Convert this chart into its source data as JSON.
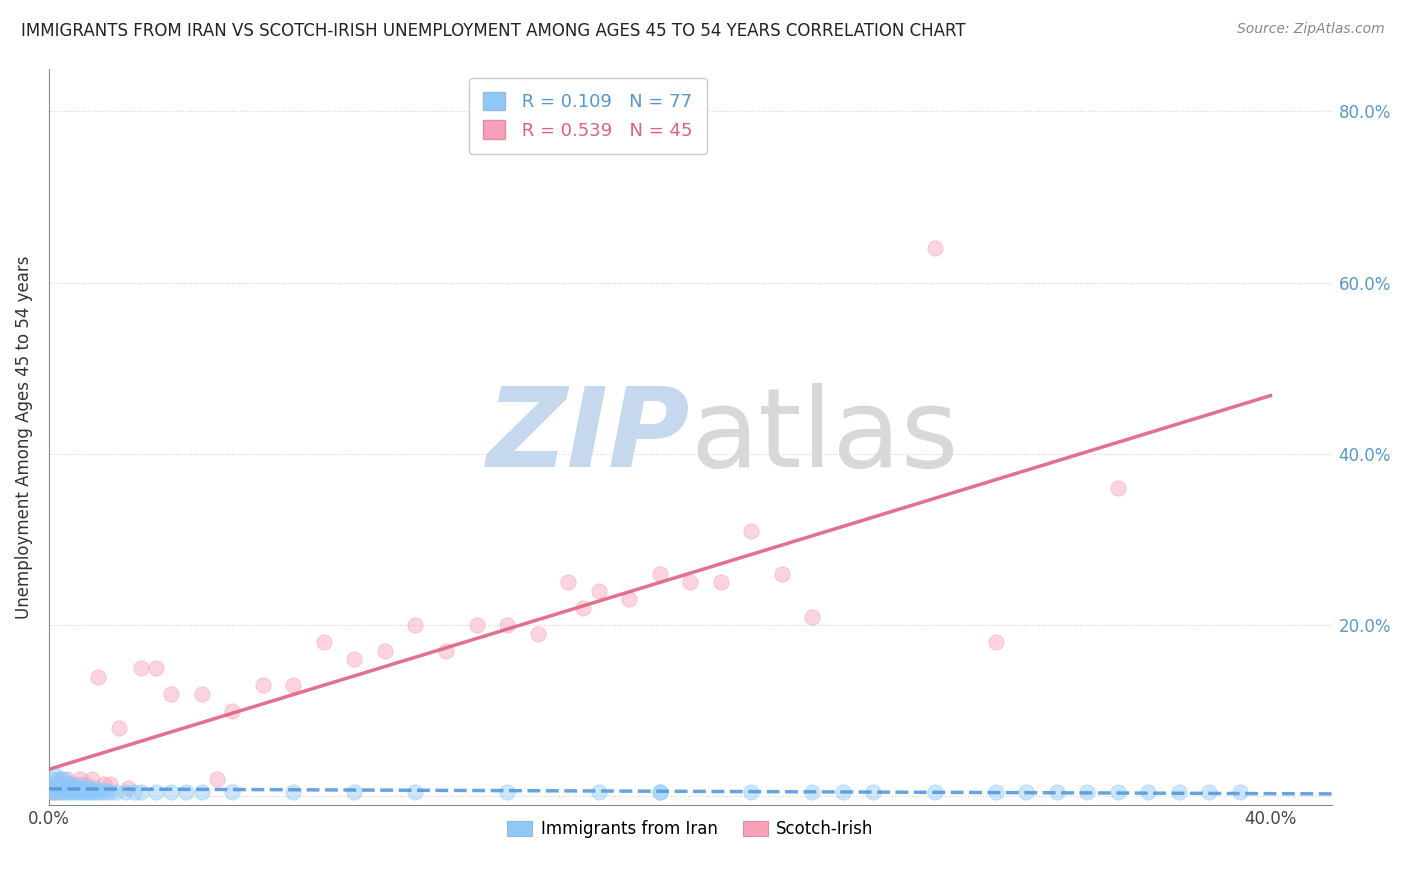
{
  "title": "IMMIGRANTS FROM IRAN VS SCOTCH-IRISH UNEMPLOYMENT AMONG AGES 45 TO 54 YEARS CORRELATION CHART",
  "source": "Source: ZipAtlas.com",
  "ylabel": "Unemployment Among Ages 45 to 54 years",
  "xlabel": "",
  "xlim": [
    0.0,
    0.42
  ],
  "ylim": [
    -0.01,
    0.85
  ],
  "xticks": [
    0.0,
    0.05,
    0.1,
    0.15,
    0.2,
    0.25,
    0.3,
    0.35,
    0.4
  ],
  "yticks": [
    0.0,
    0.2,
    0.4,
    0.6,
    0.8
  ],
  "R1": 0.109,
  "N1": 77,
  "R2": 0.539,
  "N2": 45,
  "color1": "#8ec8f8",
  "color2": "#f8a0b8",
  "line_color1": "#5599dd",
  "line_color2": "#e06080",
  "grid_color": "#cccccc",
  "background_color": "#ffffff",
  "legend_label1": "Immigrants from Iran",
  "legend_label2": "Scotch-Irish",
  "iran_x": [
    0.001,
    0.001,
    0.001,
    0.002,
    0.002,
    0.002,
    0.002,
    0.003,
    0.003,
    0.003,
    0.003,
    0.004,
    0.004,
    0.004,
    0.005,
    0.005,
    0.005,
    0.005,
    0.006,
    0.006,
    0.006,
    0.007,
    0.007,
    0.007,
    0.008,
    0.008,
    0.008,
    0.009,
    0.009,
    0.01,
    0.01,
    0.01,
    0.011,
    0.011,
    0.012,
    0.012,
    0.013,
    0.013,
    0.014,
    0.014,
    0.015,
    0.015,
    0.016,
    0.017,
    0.018,
    0.019,
    0.02,
    0.022,
    0.025,
    0.028,
    0.03,
    0.035,
    0.04,
    0.045,
    0.05,
    0.06,
    0.08,
    0.1,
    0.12,
    0.15,
    0.18,
    0.2,
    0.23,
    0.26,
    0.29,
    0.31,
    0.33,
    0.35,
    0.37,
    0.39,
    0.25,
    0.27,
    0.2,
    0.32,
    0.34,
    0.36,
    0.38
  ],
  "iran_y": [
    0.005,
    0.01,
    0.02,
    0.005,
    0.01,
    0.015,
    0.025,
    0.005,
    0.01,
    0.015,
    0.02,
    0.005,
    0.01,
    0.02,
    0.005,
    0.008,
    0.012,
    0.02,
    0.005,
    0.01,
    0.015,
    0.005,
    0.01,
    0.015,
    0.005,
    0.008,
    0.012,
    0.005,
    0.01,
    0.005,
    0.008,
    0.015,
    0.005,
    0.01,
    0.005,
    0.01,
    0.005,
    0.01,
    0.005,
    0.008,
    0.005,
    0.01,
    0.005,
    0.005,
    0.008,
    0.005,
    0.005,
    0.005,
    0.005,
    0.005,
    0.005,
    0.005,
    0.005,
    0.005,
    0.005,
    0.005,
    0.005,
    0.005,
    0.005,
    0.005,
    0.005,
    0.005,
    0.005,
    0.005,
    0.005,
    0.005,
    0.005,
    0.005,
    0.005,
    0.005,
    0.005,
    0.005,
    0.005,
    0.005,
    0.005,
    0.005,
    0.005
  ],
  "scotch_x": [
    0.001,
    0.002,
    0.003,
    0.004,
    0.005,
    0.006,
    0.007,
    0.008,
    0.01,
    0.012,
    0.014,
    0.016,
    0.018,
    0.02,
    0.023,
    0.026,
    0.03,
    0.035,
    0.04,
    0.05,
    0.055,
    0.06,
    0.07,
    0.08,
    0.09,
    0.1,
    0.11,
    0.12,
    0.13,
    0.14,
    0.15,
    0.16,
    0.17,
    0.175,
    0.18,
    0.19,
    0.2,
    0.21,
    0.22,
    0.23,
    0.24,
    0.25,
    0.29,
    0.31,
    0.35
  ],
  "scotch_y": [
    0.005,
    0.005,
    0.01,
    0.01,
    0.015,
    0.02,
    0.01,
    0.015,
    0.02,
    0.015,
    0.02,
    0.14,
    0.015,
    0.015,
    0.08,
    0.01,
    0.15,
    0.15,
    0.12,
    0.12,
    0.02,
    0.1,
    0.13,
    0.13,
    0.18,
    0.16,
    0.17,
    0.2,
    0.17,
    0.2,
    0.2,
    0.19,
    0.25,
    0.22,
    0.24,
    0.23,
    0.26,
    0.25,
    0.25,
    0.31,
    0.26,
    0.21,
    0.64,
    0.18,
    0.36
  ],
  "iran_line_x": [
    0.0,
    0.4
  ],
  "iran_line_y": [
    0.01,
    0.013
  ],
  "scotch_line_x": [
    0.0,
    0.4
  ],
  "scotch_line_y": [
    0.0,
    0.4
  ]
}
